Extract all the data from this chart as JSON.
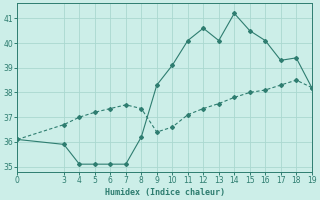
{
  "xlabel": "Humidex (Indice chaleur)",
  "bg_color": "#cceee8",
  "grid_color": "#aad8d0",
  "line_color": "#2e7d70",
  "line1_x": [
    0,
    3,
    4,
    5,
    6,
    7,
    8,
    9,
    10,
    11,
    12,
    13,
    14,
    15,
    16,
    17,
    18,
    19
  ],
  "line1_y": [
    36.1,
    35.9,
    35.1,
    35.1,
    35.1,
    35.1,
    36.2,
    38.3,
    39.1,
    40.1,
    40.6,
    40.1,
    41.2,
    40.5,
    40.1,
    39.3,
    39.4,
    38.2
  ],
  "line2_x": [
    0,
    3,
    4,
    5,
    6,
    7,
    8,
    9,
    10,
    11,
    12,
    13,
    14,
    15,
    16,
    17,
    18,
    19
  ],
  "line2_y": [
    36.1,
    36.7,
    37.0,
    37.2,
    37.35,
    37.5,
    37.35,
    36.4,
    36.6,
    37.1,
    37.35,
    37.55,
    37.8,
    38.0,
    38.1,
    38.3,
    38.5,
    38.2
  ],
  "xlim": [
    0,
    19
  ],
  "ylim": [
    34.8,
    41.6
  ],
  "xticks": [
    0,
    3,
    4,
    5,
    6,
    7,
    8,
    9,
    10,
    11,
    12,
    13,
    14,
    15,
    16,
    17,
    18,
    19
  ],
  "yticks": [
    35,
    36,
    37,
    38,
    39,
    40,
    41
  ]
}
